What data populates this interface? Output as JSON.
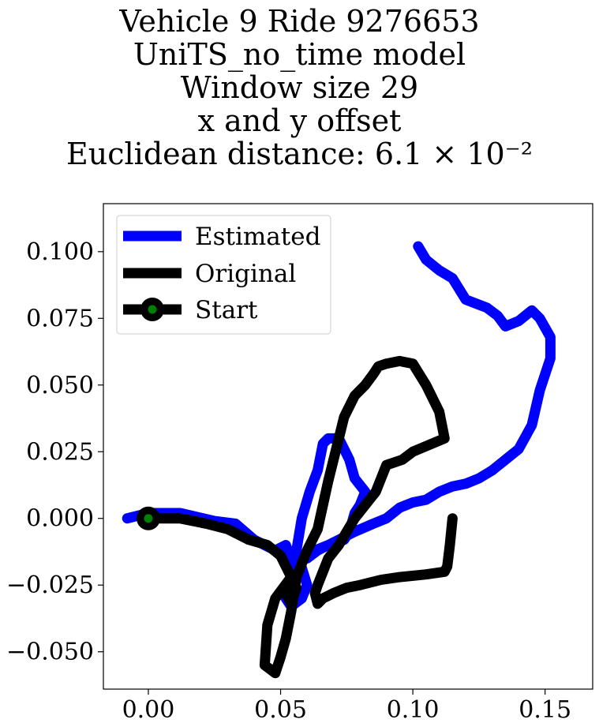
{
  "title": {
    "line1": "Vehicle 9 Ride 9276653",
    "line2": "UniTS_no_time model",
    "line3": "Window size 29",
    "line4": "x and y offset",
    "line5": "Euclidean distance: 6.1 × 10⁻²"
  },
  "colors": {
    "estimated": "#0000ff",
    "original": "#000000",
    "start_marker_fill": "#008000"
  },
  "chart_data": {
    "type": "line",
    "title": "Vehicle 9 Ride 9276653 UniTS_no_time model Window size 29 x and y offset Euclidean distance: 6.1 × 10^-2",
    "xlabel": "",
    "ylabel": "",
    "xlim": [
      -0.017,
      0.168
    ],
    "ylim": [
      -0.064,
      0.118
    ],
    "xticks": [
      0.0,
      0.05,
      0.1,
      0.15
    ],
    "xtick_labels": [
      "0.00",
      "0.05",
      "0.10",
      "0.15"
    ],
    "yticks": [
      -0.05,
      -0.025,
      0.0,
      0.025,
      0.05,
      0.075,
      0.1
    ],
    "ytick_labels": [
      "−0.050",
      "−0.025",
      "0.000",
      "0.025",
      "0.050",
      "0.075",
      "0.100"
    ],
    "grid": false,
    "legend_position": "upper-left",
    "series": [
      {
        "name": "Estimated",
        "color": "#0000ff",
        "x": [
          -0.008,
          0.0,
          0.012,
          0.025,
          0.033,
          0.04,
          0.048,
          0.052,
          0.055,
          0.054,
          0.052,
          0.054,
          0.058,
          0.06,
          0.056,
          0.058,
          0.061,
          0.064,
          0.066,
          0.068,
          0.072,
          0.076,
          0.078,
          0.082,
          0.08,
          0.078,
          0.076,
          0.074,
          0.068,
          0.063,
          0.06,
          0.064,
          0.068,
          0.072,
          0.078,
          0.085,
          0.09,
          0.095,
          0.1,
          0.105,
          0.11,
          0.115,
          0.12,
          0.125,
          0.13,
          0.14,
          0.145,
          0.148,
          0.152,
          0.152,
          0.148,
          0.145,
          0.14,
          0.135,
          0.132,
          0.128,
          0.12,
          0.115,
          0.11,
          0.105,
          0.102
        ],
        "y": [
          0.0,
          0.002,
          0.002,
          -0.001,
          -0.002,
          -0.008,
          -0.012,
          -0.01,
          -0.018,
          -0.025,
          -0.03,
          -0.033,
          -0.03,
          -0.025,
          -0.012,
          0.0,
          0.01,
          0.018,
          0.028,
          0.03,
          0.03,
          0.022,
          0.015,
          0.01,
          0.005,
          0.002,
          -0.005,
          -0.008,
          -0.01,
          -0.012,
          -0.015,
          -0.012,
          -0.01,
          -0.008,
          -0.005,
          -0.002,
          0.0,
          0.004,
          0.006,
          0.007,
          0.01,
          0.012,
          0.013,
          0.015,
          0.018,
          0.026,
          0.035,
          0.048,
          0.06,
          0.068,
          0.075,
          0.078,
          0.074,
          0.072,
          0.076,
          0.079,
          0.082,
          0.09,
          0.093,
          0.097,
          0.102
        ]
      },
      {
        "name": "Original",
        "color": "#000000",
        "x": [
          0.0,
          0.012,
          0.022,
          0.03,
          0.038,
          0.045,
          0.05,
          0.053,
          0.056,
          0.054,
          0.052,
          0.054,
          0.048,
          0.045,
          0.044,
          0.048,
          0.05,
          0.052,
          0.054,
          0.056,
          0.06,
          0.064,
          0.066,
          0.068,
          0.07,
          0.072,
          0.074,
          0.078,
          0.082,
          0.085,
          0.087,
          0.09,
          0.095,
          0.1,
          0.105,
          0.11,
          0.112,
          0.1,
          0.096,
          0.09,
          0.088,
          0.086,
          0.082,
          0.078,
          0.075,
          0.072,
          0.068,
          0.066,
          0.064,
          0.063,
          0.064,
          0.066,
          0.07,
          0.075,
          0.08,
          0.088,
          0.095,
          0.105,
          0.112,
          0.113,
          0.114,
          0.115
        ],
        "y": [
          0.0,
          0.0,
          -0.002,
          -0.004,
          -0.008,
          -0.01,
          -0.014,
          -0.02,
          -0.026,
          -0.032,
          -0.028,
          -0.022,
          -0.03,
          -0.04,
          -0.055,
          -0.058,
          -0.052,
          -0.045,
          -0.035,
          -0.022,
          -0.012,
          -0.004,
          0.005,
          0.014,
          0.022,
          0.03,
          0.038,
          0.046,
          0.05,
          0.054,
          0.057,
          0.058,
          0.059,
          0.058,
          0.05,
          0.04,
          0.03,
          0.025,
          0.022,
          0.02,
          0.015,
          0.01,
          0.005,
          0.0,
          -0.005,
          -0.01,
          -0.015,
          -0.02,
          -0.025,
          -0.028,
          -0.032,
          -0.03,
          -0.028,
          -0.026,
          -0.025,
          -0.023,
          -0.022,
          -0.021,
          -0.02,
          -0.018,
          -0.01,
          0.0
        ]
      }
    ],
    "legend": [
      {
        "label": "Estimated",
        "style": "line",
        "color": "#0000ff"
      },
      {
        "label": "Original",
        "style": "line",
        "color": "#000000"
      },
      {
        "label": "Start",
        "style": "line-marker",
        "color": "#000000",
        "marker_fill": "#008000"
      }
    ],
    "start_point": {
      "x": 0.0,
      "y": 0.0
    }
  }
}
